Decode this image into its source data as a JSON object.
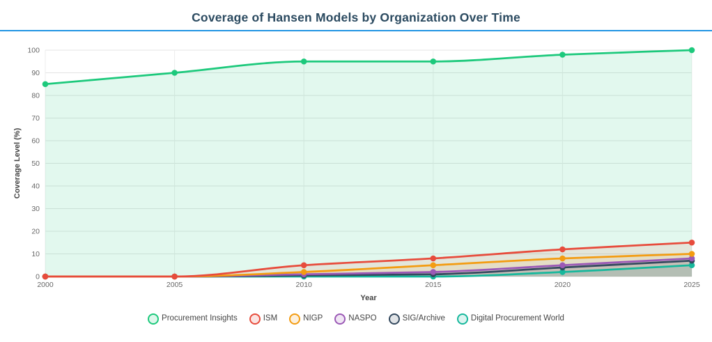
{
  "header": {
    "title": "Coverage of Hansen Models by Organization Over Time",
    "title_color": "#2b4a60",
    "rule_color": "#2094e3"
  },
  "chart_data": {
    "type": "line",
    "title": "Coverage of Hansen Models by Organization Over Time",
    "xlabel": "Year",
    "ylabel": "Coverage Level (%)",
    "x": [
      2000,
      2005,
      2010,
      2015,
      2020,
      2025
    ],
    "xlim": [
      2000,
      2025
    ],
    "ylim": [
      0,
      100
    ],
    "yticks": [
      0,
      10,
      20,
      30,
      40,
      50,
      60,
      70,
      80,
      90,
      100
    ],
    "grid": true,
    "legend_position": "bottom",
    "axis_text_color": "#666666",
    "axis_title_color": "#444444",
    "series": [
      {
        "name": "Procurement Insights",
        "color": "#1dc97c",
        "fill_opacity": 0.13,
        "values": [
          85,
          90,
          95,
          95,
          98,
          100
        ]
      },
      {
        "name": "ISM",
        "color": "#e74c3c",
        "fill_opacity": 0.1,
        "values": [
          0,
          0,
          5,
          8,
          12,
          15
        ]
      },
      {
        "name": "NIGP",
        "color": "#f39c12",
        "fill_opacity": 0.1,
        "values": [
          0,
          0,
          2,
          5,
          8,
          10
        ]
      },
      {
        "name": "NASPO",
        "color": "#9b59b6",
        "fill_opacity": 0.1,
        "values": [
          0,
          0,
          1,
          2,
          5,
          8
        ]
      },
      {
        "name": "SIG/Archive",
        "color": "#34495e",
        "fill_opacity": 0.12,
        "values": [
          0,
          0,
          0.5,
          1,
          4,
          7
        ]
      },
      {
        "name": "Digital Procurement World",
        "color": "#16b89c",
        "fill_opacity": 0.1,
        "values": [
          0,
          0,
          0,
          0,
          2,
          5
        ]
      }
    ]
  }
}
